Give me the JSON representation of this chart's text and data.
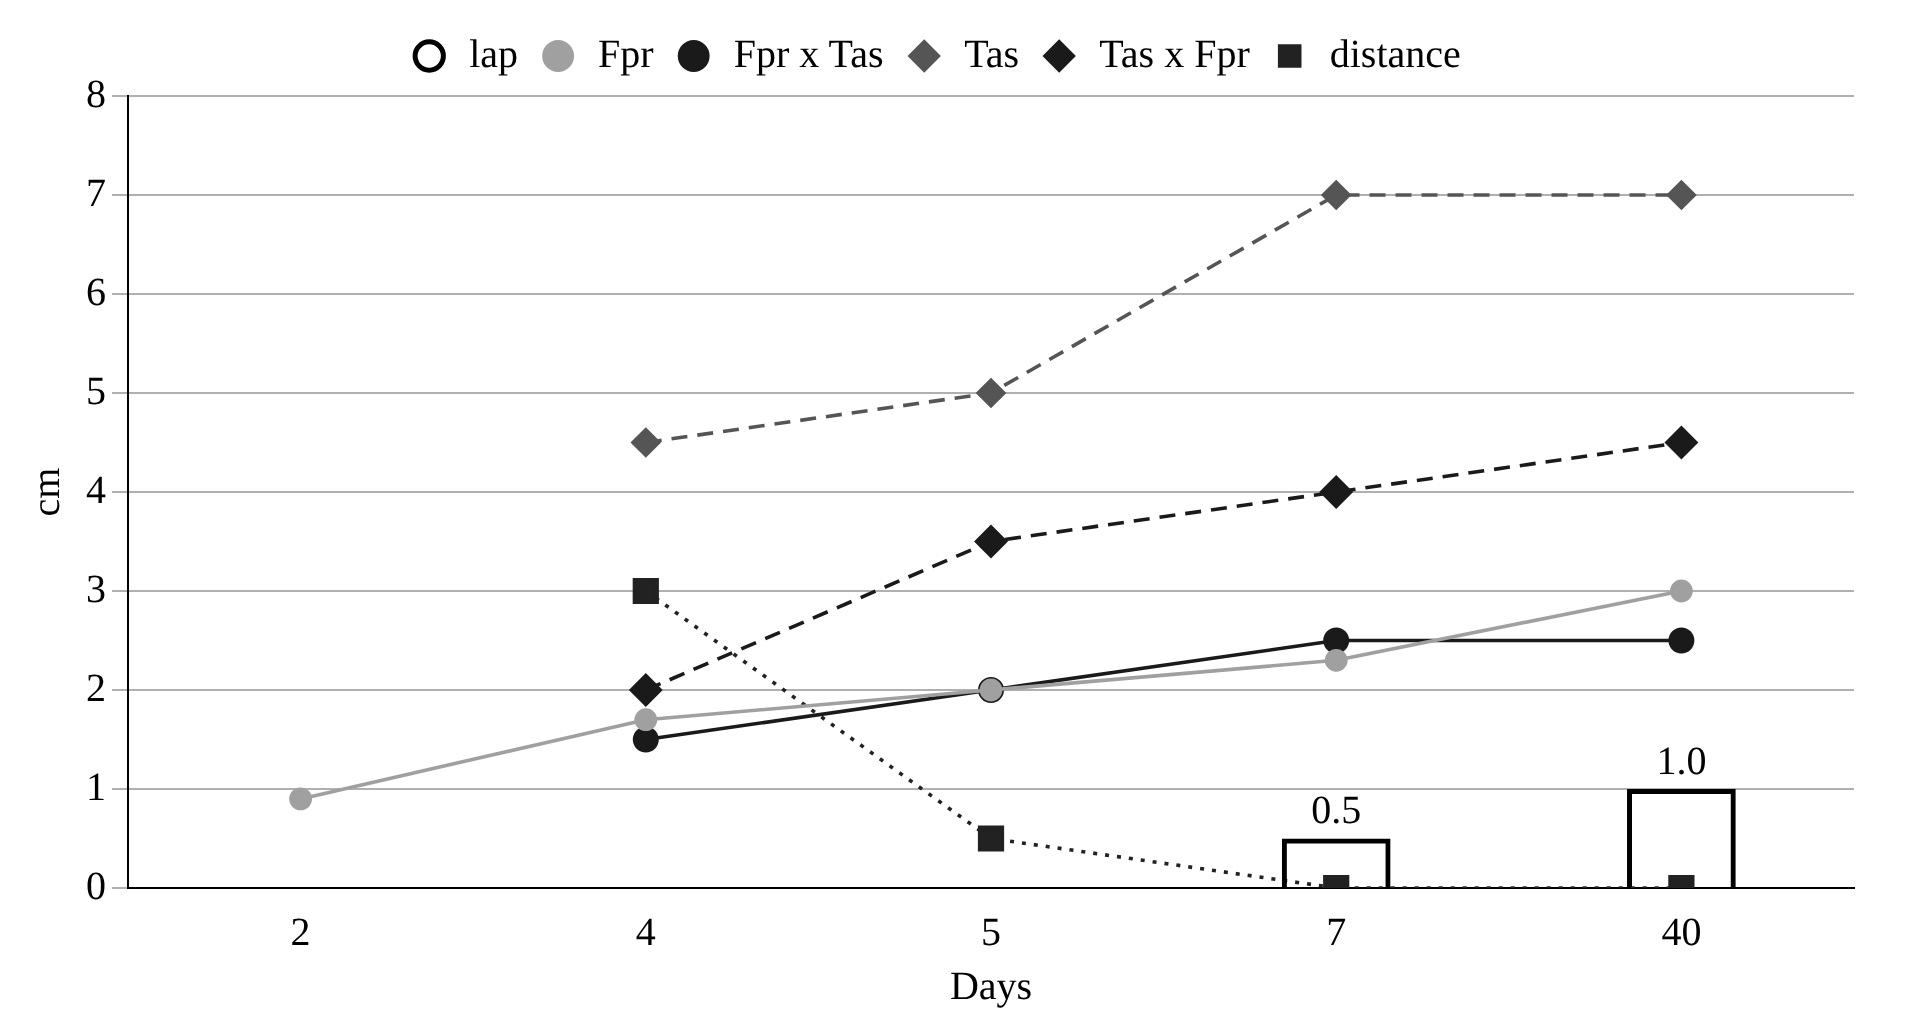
{
  "chart_data": {
    "type": "line",
    "xlabel": "Days",
    "ylabel": "cm",
    "categories": [
      "2",
      "4",
      "5",
      "7",
      "40"
    ],
    "ylim": [
      0,
      8
    ],
    "yticks": [
      0,
      1,
      2,
      3,
      4,
      5,
      6,
      7,
      8
    ],
    "grid": "y",
    "legend": "top",
    "series": [
      {
        "name": "lap",
        "type": "bar",
        "color": "#000000",
        "values": [
          null,
          null,
          null,
          0.5,
          1.0
        ],
        "value_labels": [
          null,
          null,
          null,
          "0.5",
          "1.0"
        ]
      },
      {
        "name": "Fpr",
        "color": "#a0a0a0",
        "marker": "circle",
        "line_style": "solid",
        "values": [
          0.9,
          1.7,
          2.0,
          2.3,
          3.0
        ]
      },
      {
        "name": "Fpr x Tas",
        "color": "#1a1a1a",
        "marker": "circle",
        "line_style": "solid",
        "values": [
          null,
          1.5,
          2.0,
          2.5,
          2.5
        ]
      },
      {
        "name": "Tas",
        "color": "#555555",
        "marker": "diamond",
        "line_style": "dashed",
        "values": [
          null,
          4.5,
          5.0,
          7.0,
          7.0
        ]
      },
      {
        "name": "Tas x Fpr",
        "color": "#1a1a1a",
        "marker": "diamond",
        "line_style": "dashed",
        "values": [
          null,
          2.0,
          3.5,
          4.0,
          4.5
        ]
      },
      {
        "name": "distance",
        "color": "#222222",
        "marker": "square",
        "line_style": "dotted",
        "values": [
          null,
          3.0,
          0.5,
          0,
          0
        ]
      }
    ]
  }
}
